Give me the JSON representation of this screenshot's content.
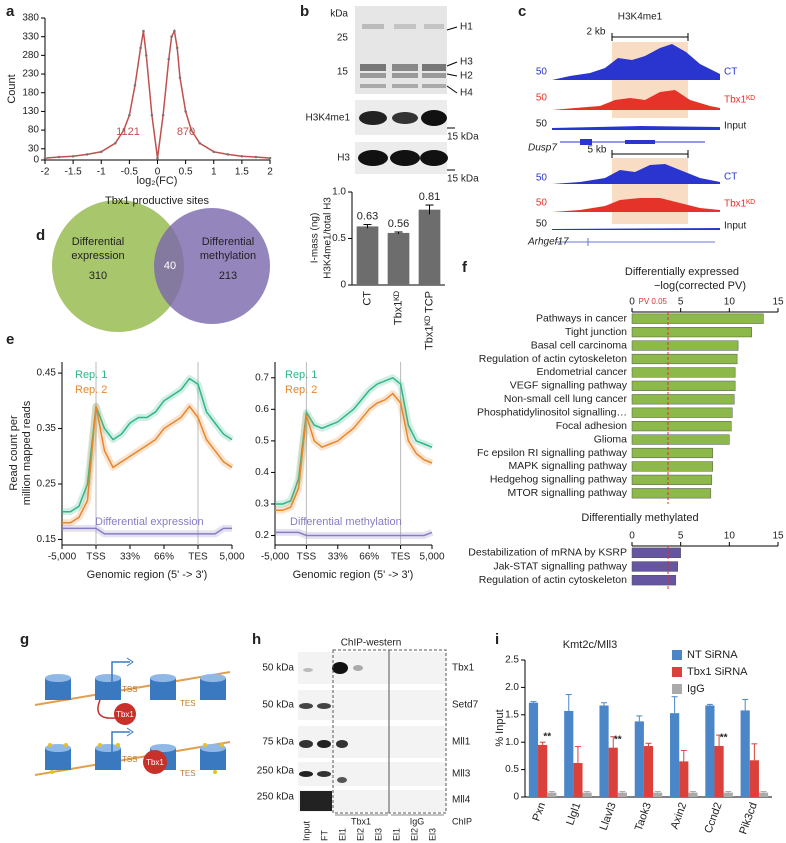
{
  "panel_labels": [
    "a",
    "b",
    "c",
    "d",
    "e",
    "f",
    "g",
    "h",
    "i"
  ],
  "chart_data": [
    {
      "type": "line",
      "ylabel": "Count",
      "xlabel": "log₂(FC)",
      "caption": "Tbx1 productive sites",
      "annotations": [
        "1121",
        "870"
      ],
      "x": [
        -2,
        -1.75,
        -1.5,
        -1.25,
        -1,
        -0.75,
        -0.6,
        -0.5,
        -0.4,
        -0.3,
        -0.25,
        -0.2,
        -0.1,
        0,
        0.1,
        0.2,
        0.25,
        0.3,
        0.35,
        0.4,
        0.5,
        0.6,
        0.75,
        1,
        1.25,
        1.5,
        1.75,
        2
      ],
      "values": [
        5,
        8,
        10,
        15,
        22,
        45,
        80,
        120,
        200,
        300,
        345,
        280,
        120,
        5,
        120,
        270,
        330,
        345,
        300,
        220,
        130,
        80,
        45,
        22,
        15,
        10,
        8,
        5
      ],
      "color": "#c0504d",
      "xlim": [
        -2,
        2
      ],
      "xticks": [
        -2,
        -1.5,
        -1,
        -0.5,
        0,
        0.5,
        1,
        1.5,
        2
      ],
      "ylim": [
        0,
        380
      ],
      "yticks": [
        0,
        30,
        80,
        130,
        180,
        230,
        280,
        330,
        380
      ]
    },
    {
      "type": "bar",
      "ylabel": [
        "I-mass (ng)",
        "H3K4me1/total H3"
      ],
      "categories": [
        "CT",
        "Tbx1ᴷᴰ",
        "Tbx1ᴷᴰ TCP"
      ],
      "values": [
        0.63,
        0.56,
        0.81
      ],
      "errors": [
        0.02,
        0.01,
        0.05
      ],
      "color": "#6d6d6d",
      "ylim": [
        0,
        1
      ],
      "yticks": [
        0,
        0.5,
        {
          "value": 1,
          "label": "1.0"
        }
      ]
    },
    {
      "type": "line",
      "ylabel": [
        "Read count per",
        "million mapped reads"
      ],
      "xlabel": "Genomic region (5' -> 3')",
      "band": true,
      "x": [
        0,
        5,
        10,
        15,
        20,
        25,
        30,
        35,
        40,
        45,
        50,
        55,
        60,
        65,
        70,
        75,
        80,
        85,
        90,
        95,
        100
      ],
      "xlim": [
        0,
        100
      ],
      "xticks": [
        {
          "value": 0,
          "label": "-5,000"
        },
        {
          "value": 20,
          "label": "TSS"
        },
        {
          "value": 40,
          "label": "33%"
        },
        {
          "value": 60,
          "label": "66%"
        },
        {
          "value": 80,
          "label": "TES"
        },
        {
          "value": 100,
          "label": "5,000"
        }
      ],
      "ylim": [
        0.14,
        0.47
      ],
      "yticks": [
        0.15,
        0.25,
        0.35,
        0.45
      ],
      "series": [
        {
          "name": "Rep. 1",
          "color": "#2fb58a",
          "values": [
            0.2,
            0.2,
            0.21,
            0.25,
            0.39,
            0.35,
            0.33,
            0.34,
            0.36,
            0.37,
            0.37,
            0.38,
            0.4,
            0.41,
            0.42,
            0.44,
            0.43,
            0.38,
            0.36,
            0.34,
            0.33
          ]
        },
        {
          "name": "Rep. 2",
          "color": "#e8862a",
          "values": [
            0.18,
            0.18,
            0.19,
            0.22,
            0.39,
            0.31,
            0.28,
            0.29,
            0.3,
            0.31,
            0.32,
            0.33,
            0.35,
            0.36,
            0.37,
            0.39,
            0.37,
            0.33,
            0.31,
            0.29,
            0.28
          ]
        },
        {
          "name": "Differential expression",
          "color": "#8a7cc4",
          "values": [
            0.17,
            0.17,
            0.17,
            0.17,
            0.17,
            0.16,
            0.16,
            0.16,
            0.16,
            0.16,
            0.16,
            0.16,
            0.16,
            0.16,
            0.16,
            0.16,
            0.16,
            0.16,
            0.16,
            0.17,
            0.17
          ]
        }
      ]
    },
    {
      "type": "line",
      "xlabel": "Genomic region (5' -> 3')",
      "band": true,
      "x": [
        0,
        5,
        10,
        15,
        20,
        25,
        30,
        35,
        40,
        45,
        50,
        55,
        60,
        65,
        70,
        75,
        80,
        85,
        90,
        95,
        100
      ],
      "xlim": [
        0,
        100
      ],
      "xticks": [
        {
          "value": 0,
          "label": "-5,000"
        },
        {
          "value": 20,
          "label": "TSS"
        },
        {
          "value": 40,
          "label": "33%"
        },
        {
          "value": 60,
          "label": "66%"
        },
        {
          "value": 80,
          "label": "TES"
        },
        {
          "value": 100,
          "label": "5,000"
        }
      ],
      "ylim": [
        0.17,
        0.75
      ],
      "yticks": [
        0.2,
        0.3,
        0.4,
        0.5,
        0.6,
        0.7
      ],
      "series": [
        {
          "name": "Rep. 1",
          "color": "#2fb58a",
          "values": [
            0.3,
            0.3,
            0.31,
            0.38,
            0.59,
            0.55,
            0.54,
            0.55,
            0.56,
            0.58,
            0.6,
            0.63,
            0.66,
            0.68,
            0.69,
            0.7,
            0.68,
            0.55,
            0.5,
            0.49,
            0.48
          ]
        },
        {
          "name": "Rep. 2",
          "color": "#e8862a",
          "values": [
            0.28,
            0.28,
            0.29,
            0.35,
            0.58,
            0.5,
            0.48,
            0.49,
            0.5,
            0.52,
            0.54,
            0.57,
            0.6,
            0.62,
            0.63,
            0.65,
            0.62,
            0.5,
            0.46,
            0.44,
            0.43
          ]
        },
        {
          "name": "Differential methylation",
          "color": "#8a7cc4",
          "values": [
            0.21,
            0.21,
            0.21,
            0.21,
            0.2,
            0.2,
            0.2,
            0.2,
            0.2,
            0.2,
            0.2,
            0.2,
            0.2,
            0.2,
            0.2,
            0.2,
            0.2,
            0.2,
            0.2,
            0.2,
            0.21
          ]
        }
      ]
    },
    {
      "type": "hbar",
      "title": "Differentially expressed",
      "xlabel": "−log(corrected PV)",
      "categories": [
        "Pathways in cancer",
        "Tight junction",
        "Basal cell carcinoma",
        "Regulation of actin cytoskeleton",
        "Endometrial cancer",
        "VEGF signalling pathway",
        "Non-small cell lung cancer",
        "Phosphatidylinositol signalling…",
        "Focal adhesion",
        "Glioma",
        "Fc epsilon RI signalling pathway",
        "MAPK signalling pathway",
        "Hedgehog signalling pathway",
        "MTOR signalling pathway"
      ],
      "values": [
        13.5,
        12.3,
        10.9,
        10.8,
        10.6,
        10.6,
        10.5,
        10.3,
        10.2,
        10.0,
        8.3,
        8.3,
        8.2,
        8.1
      ],
      "color": "#8db84a",
      "xlim": [
        0,
        15
      ],
      "xticks": [
        0,
        5,
        10,
        15
      ],
      "threshold": {
        "value": 3.7,
        "label": "PV 0.05"
      }
    },
    {
      "type": "hbar",
      "title": "Differentially methylated",
      "categories": [
        "Destabilization of mRNA by KSRP",
        "Jak-STAT signalling pathway",
        "Regulation of actin cytoskeleton"
      ],
      "values": [
        5.0,
        4.7,
        4.5
      ],
      "color": "#6655a0",
      "xlim": [
        0,
        15
      ],
      "xticks": [
        0,
        5,
        10,
        15
      ],
      "threshold": 3.7
    },
    {
      "type": "grouped_bar",
      "title": "Kmt2c/Mll3",
      "ylabel": "% Input",
      "legend": "upper right",
      "categories": [
        "Pxn",
        "Llgl1",
        "Llavl3",
        "Taok3",
        "Axin2",
        "Ccnd2",
        "Pik3cd"
      ],
      "significance": [
        "**",
        null,
        "**",
        null,
        null,
        "**",
        null
      ],
      "ylim": [
        0,
        2.5
      ],
      "yticks": [
        0,
        0.5,
        {
          "value": 1,
          "label": "1.0"
        },
        1.5,
        {
          "value": 2,
          "label": "2.0"
        },
        2.5
      ],
      "series": [
        {
          "name": "NT SiRNA",
          "color": "#4a86c8",
          "values": [
            1.72,
            1.57,
            1.67,
            1.38,
            1.53,
            1.67,
            1.58
          ],
          "errors": [
            0.02,
            0.3,
            0.05,
            0.1,
            0.3,
            0.02,
            0.2
          ]
        },
        {
          "name": "Tbx1 SiRNA",
          "color": "#d9413a",
          "values": [
            0.95,
            0.62,
            0.9,
            0.93,
            0.65,
            0.93,
            0.67
          ],
          "errors": [
            0.05,
            0.3,
            0.2,
            0.05,
            0.2,
            0.2,
            0.3
          ]
        },
        {
          "name": "IgG",
          "color": "#aaaaaa",
          "values": [
            0.08,
            0.08,
            0.08,
            0.08,
            0.08,
            0.08,
            0.08
          ],
          "errors": [
            0.02,
            0.02,
            0.02,
            0.02,
            0.02,
            0.02,
            0.02
          ]
        }
      ]
    }
  ],
  "blot_b": {
    "kda": "kDa",
    "m25": "25",
    "m15": "15",
    "bands": [
      "H1",
      "H3",
      "H2",
      "H4"
    ],
    "row2": "H3K4me1",
    "row2_mw": "15 kDa",
    "row3": "H3",
    "row3_mw": "15 kDa"
  },
  "tracks_c": {
    "title": "H3K4me1",
    "scale1": "2 kb",
    "scale2": "5 kb",
    "max": "50",
    "tracks": [
      "CT",
      "Tbx1ᴷᴰ",
      "Input"
    ],
    "genes": [
      "Dusp7",
      "Arhgef17"
    ]
  },
  "venn_d": {
    "left": [
      "Differential",
      "expression"
    ],
    "left_count": "310",
    "overlap": "40",
    "right": [
      "Differential",
      "methylation"
    ],
    "right_count": "213"
  },
  "schematic_g": {
    "labels": [
      "TSS",
      "TES",
      "Tbx1"
    ]
  },
  "western_h": {
    "title": "ChIP-western",
    "mw": [
      "50 kDa",
      "50 kDa",
      "75 kDa",
      "250 kDa",
      "250 kDa"
    ],
    "proteins": [
      "Tbx1",
      "Setd7",
      "Mll1",
      "Mll3",
      "Mll4"
    ],
    "lanes": [
      "Input",
      "FT",
      "El1",
      "El2",
      "El3",
      "El1",
      "El2",
      "El3"
    ],
    "groups": [
      "Tbx1",
      "IgG",
      "ChIP"
    ]
  }
}
